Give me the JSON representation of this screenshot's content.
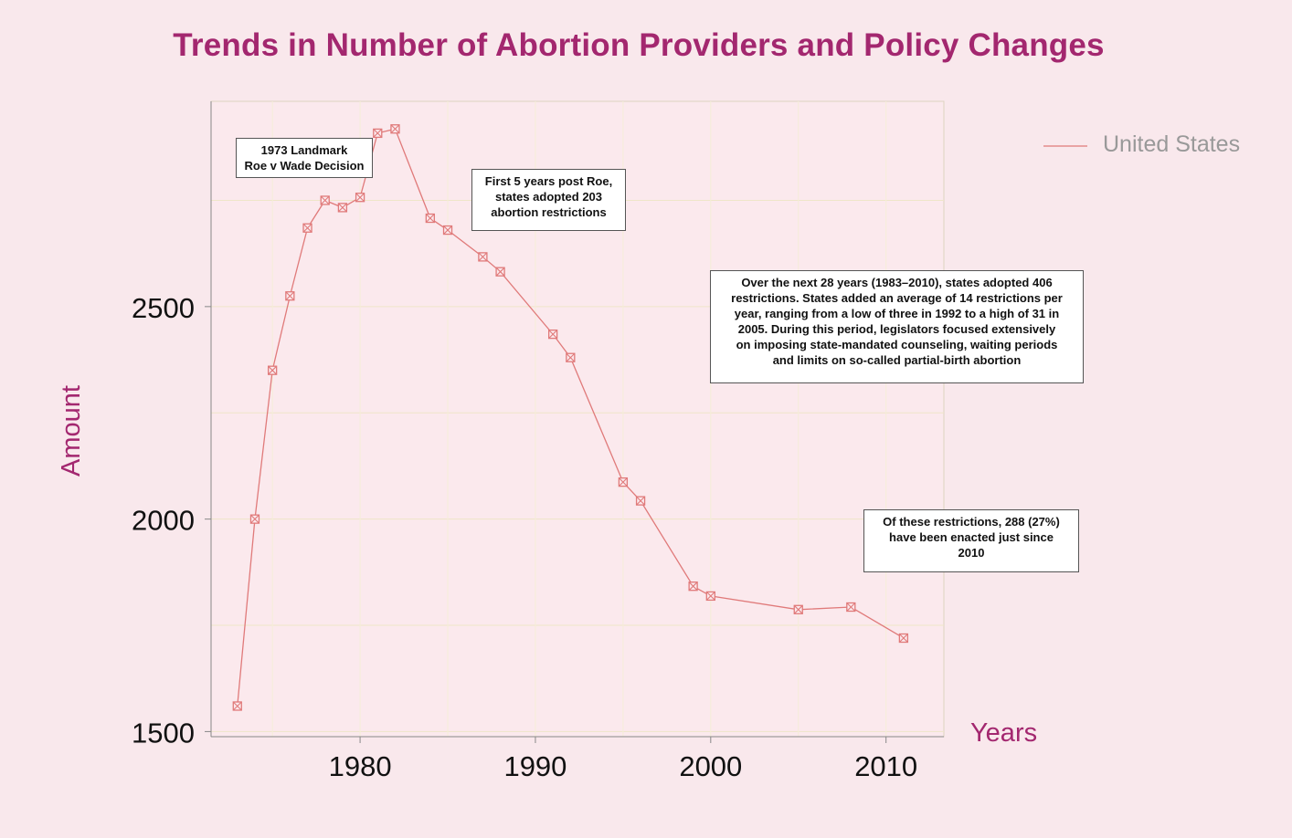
{
  "title": "Trends in Number of Abortion Providers and Policy Changes",
  "colors": {
    "background": "#f9e8ec",
    "title": "#a3276f",
    "series": "#e07a7a",
    "axis_title": "#a3276f",
    "legend_text": "#999999"
  },
  "chart_data": {
    "type": "line",
    "xlabel": "Years",
    "ylabel": "Amount",
    "xlim": [
      1971.5,
      2013.3
    ],
    "ylim": [
      1488,
      2983
    ],
    "x_ticks": [
      1980,
      1990,
      2000,
      2010
    ],
    "y_ticks": [
      1500,
      2000,
      2500
    ],
    "grid": true,
    "legend_position": "top-right",
    "series": [
      {
        "name": "United States",
        "marker": "boxed-x",
        "points": [
          {
            "x": 1973,
            "y": 1560
          },
          {
            "x": 1974,
            "y": 2000
          },
          {
            "x": 1975,
            "y": 2350
          },
          {
            "x": 1976,
            "y": 2525
          },
          {
            "x": 1977,
            "y": 2685
          },
          {
            "x": 1978,
            "y": 2750
          },
          {
            "x": 1979,
            "y": 2733
          },
          {
            "x": 1980,
            "y": 2757
          },
          {
            "x": 1981,
            "y": 2908
          },
          {
            "x": 1982,
            "y": 2918
          },
          {
            "x": 1984,
            "y": 2708
          },
          {
            "x": 1985,
            "y": 2680
          },
          {
            "x": 1987,
            "y": 2617
          },
          {
            "x": 1988,
            "y": 2582
          },
          {
            "x": 1991,
            "y": 2435
          },
          {
            "x": 1992,
            "y": 2380
          },
          {
            "x": 1995,
            "y": 2087
          },
          {
            "x": 1996,
            "y": 2043
          },
          {
            "x": 1999,
            "y": 1842
          },
          {
            "x": 2000,
            "y": 1819
          },
          {
            "x": 2005,
            "y": 1787
          },
          {
            "x": 2008,
            "y": 1793
          },
          {
            "x": 2011,
            "y": 1720
          }
        ]
      }
    ],
    "annotations": [
      {
        "lines": [
          "1973 Landmark",
          "Roe v Wade Decision"
        ]
      },
      {
        "lines": [
          "First 5 years post Roe,",
          "states adopted 203",
          "abortion restrictions"
        ]
      },
      {
        "lines": [
          "Over the next 28 years (1983–2010), states adopted 406",
          "restrictions. States added an average of 14 restrictions per",
          "year, ranging from a low of three in 1992 to a high of 31 in",
          "2005. During this period, legislators focused extensively",
          "on imposing state-mandated counseling, waiting periods",
          "and limits on so-called partial-birth abortion"
        ]
      },
      {
        "lines": [
          "Of these restrictions, 288 (27%)",
          "have been enacted just since",
          "2010"
        ]
      }
    ]
  }
}
